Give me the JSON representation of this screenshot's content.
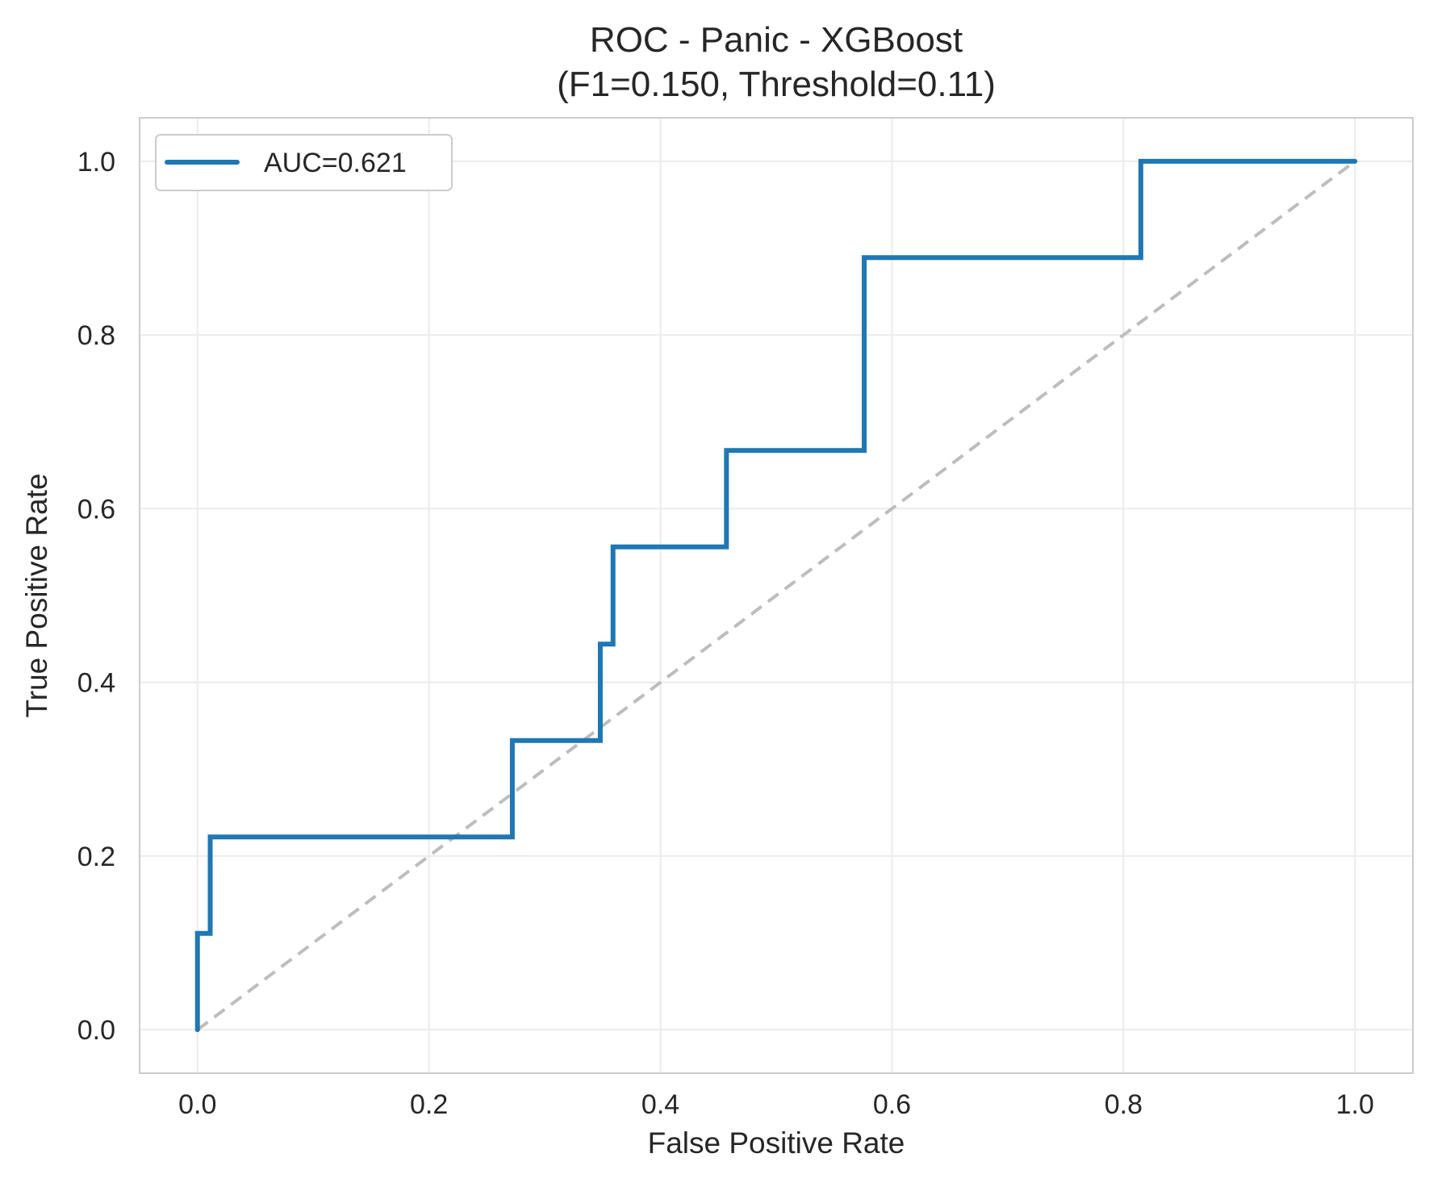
{
  "chart_data": {
    "type": "line",
    "title": "ROC - Panic - XGBoost",
    "subtitle": "(F1=0.150, Threshold=0.11)",
    "xlabel": "False Positive Rate",
    "ylabel": "True Positive Rate",
    "xlim": [
      -0.05,
      1.05
    ],
    "ylim": [
      -0.05,
      1.05
    ],
    "xticks": [
      0.0,
      0.2,
      0.4,
      0.6,
      0.8,
      1.0
    ],
    "xtick_labels": [
      "0.0",
      "0.2",
      "0.4",
      "0.6",
      "0.8",
      "1.0"
    ],
    "yticks": [
      0.0,
      0.2,
      0.4,
      0.6,
      0.8,
      1.0
    ],
    "ytick_labels": [
      "0.0",
      "0.2",
      "0.4",
      "0.6",
      "0.8",
      "1.0"
    ],
    "grid": true,
    "legend_position": "top-left",
    "series": [
      {
        "name": "AUC=0.621",
        "color": "#1f77b4",
        "style": "solid",
        "x": [
          0.0,
          0.0,
          0.011,
          0.011,
          0.272,
          0.272,
          0.348,
          0.348,
          0.359,
          0.359,
          0.457,
          0.457,
          0.576,
          0.576,
          0.815,
          0.815,
          1.0
        ],
        "y": [
          0.0,
          0.111,
          0.111,
          0.222,
          0.222,
          0.333,
          0.333,
          0.444,
          0.444,
          0.556,
          0.556,
          0.667,
          0.667,
          0.889,
          0.889,
          1.0,
          1.0
        ]
      }
    ],
    "reference_line": {
      "color": "#bdbdbd",
      "style": "dashed",
      "x": [
        0.0,
        1.0
      ],
      "y": [
        0.0,
        1.0
      ]
    }
  }
}
